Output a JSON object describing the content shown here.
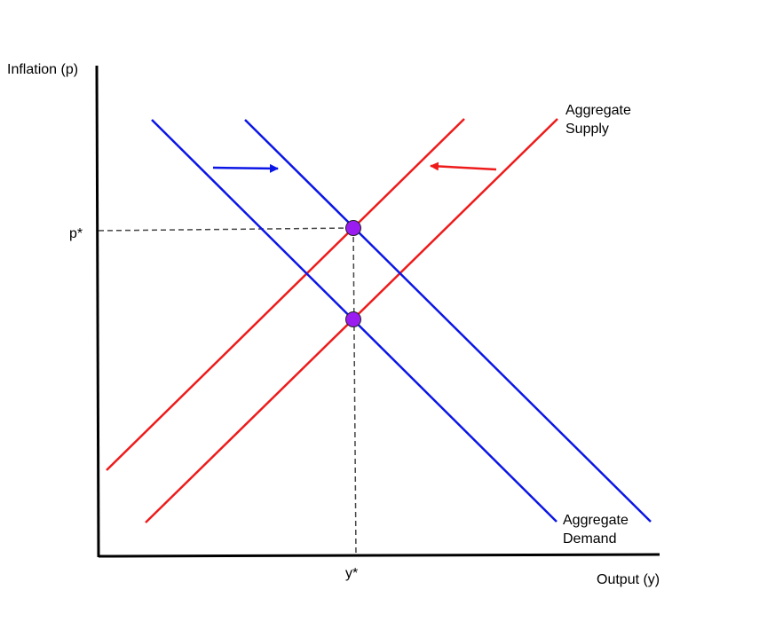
{
  "axes": {
    "y_label": "Inflation (p)",
    "x_label": "Output (y)",
    "y_tick": "p*",
    "x_tick": "y*"
  },
  "curves": {
    "supply_label_line1": "Aggregate",
    "supply_label_line2": "Supply",
    "demand_label_line1": "Aggregate",
    "demand_label_line2": "Demand"
  },
  "colors": {
    "demand": "#0b16e6",
    "supply": "#ee1b1b",
    "equilibrium": "#9b1cf0",
    "axis": "#000000",
    "guide": "#444444"
  },
  "shifts": {
    "demand": "right",
    "supply": "left"
  }
}
